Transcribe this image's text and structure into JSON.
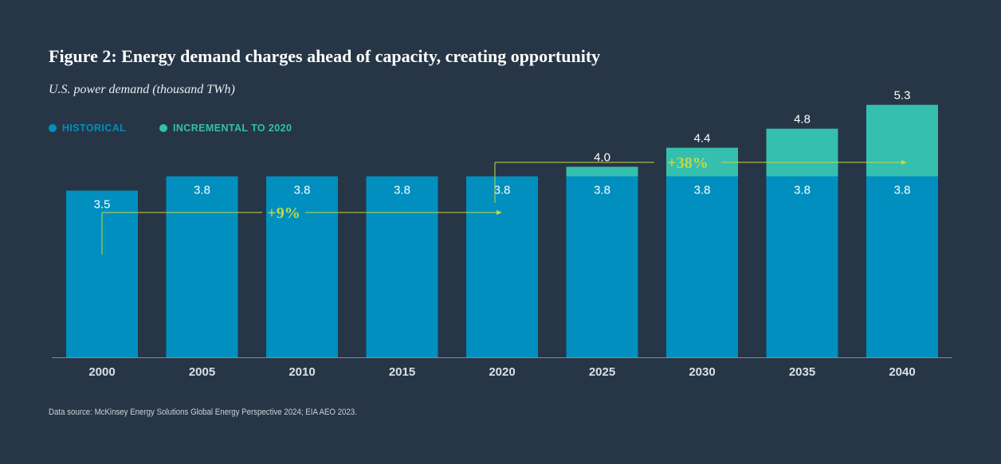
{
  "title": "Figure 2: Energy demand charges ahead of capacity, creating opportunity",
  "subtitle": "U.S. power demand (thousand TWh)",
  "source": "Data source: McKinsey Energy Solutions Global Energy Perspective 2024; EIA AEO 2023.",
  "colors": {
    "background": "#263646",
    "historical": "#008fbf",
    "incremental": "#35bfaf",
    "annotation": "#c5d843",
    "axis": "#7d8a96",
    "tick_text": "#d9e0e6"
  },
  "legend": [
    {
      "label": "HISTORICAL",
      "color": "#008fbf"
    },
    {
      "label": "INCREMENTAL TO 2020",
      "color": "#35bfaf"
    }
  ],
  "chart_data": {
    "type": "bar",
    "stacked": true,
    "categories": [
      "2000",
      "2005",
      "2010",
      "2015",
      "2020",
      "2025",
      "2030",
      "2035",
      "2040"
    ],
    "series": [
      {
        "name": "HISTORICAL",
        "values": [
          3.5,
          3.8,
          3.8,
          3.8,
          3.8,
          3.8,
          3.8,
          3.8,
          3.8
        ],
        "labels": [
          "3.5",
          "3.8",
          "3.8",
          "3.8",
          "3.8",
          "3.8",
          "3.8",
          "3.8",
          "3.8"
        ]
      },
      {
        "name": "INCREMENTAL TO 2020",
        "values": [
          0,
          0,
          0,
          0,
          0,
          0.2,
          0.6,
          1.0,
          1.5
        ]
      }
    ],
    "totals": [
      null,
      null,
      null,
      null,
      null,
      4.0,
      4.4,
      4.8,
      5.3
    ],
    "total_labels": [
      "",
      "",
      "",
      "",
      "",
      "4.0",
      "4.4",
      "4.8",
      "5.3"
    ],
    "ylim": [
      0,
      7.2
    ],
    "xlabel": "",
    "ylabel": "",
    "grid": false,
    "legend_position": "top-left",
    "annotations": [
      {
        "text": "+9%",
        "from": "2000",
        "to": "2020"
      },
      {
        "text": "+38%",
        "from": "2020",
        "to": "2040"
      }
    ]
  }
}
